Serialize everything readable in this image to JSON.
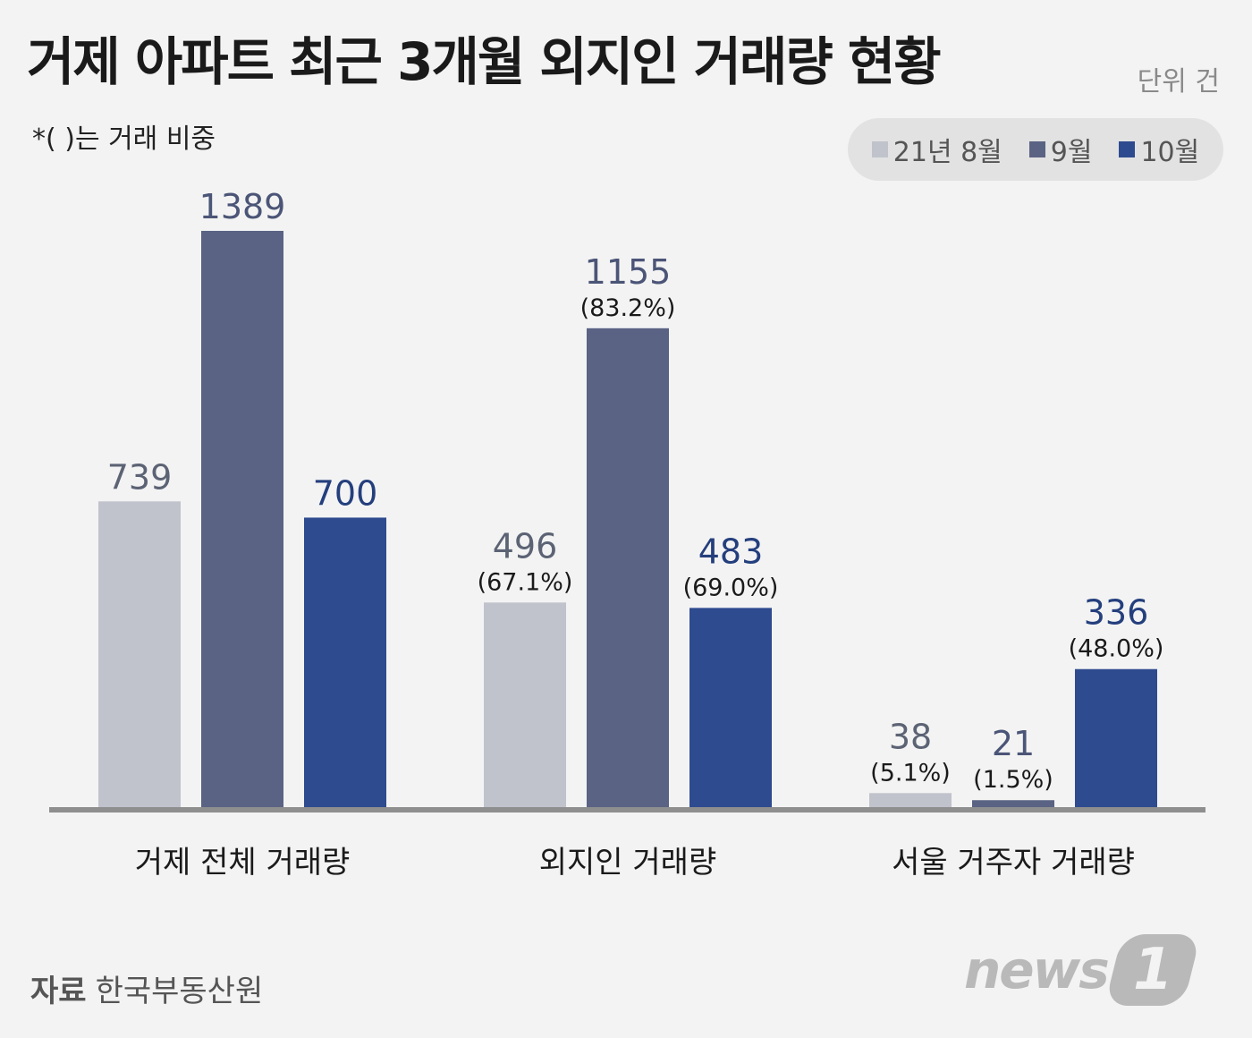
{
  "header": {
    "title": "거제 아파트 최근 3개월 외지인 거래량 현황",
    "unit": "단위 건",
    "note": "*( )는 거래 비중"
  },
  "legend": {
    "items": [
      {
        "label": "21년 8월",
        "color": "#c0c3cc"
      },
      {
        "label": "9월",
        "color": "#5a6383"
      },
      {
        "label": "10월",
        "color": "#2e4b8f"
      }
    ]
  },
  "chart_data": {
    "type": "bar",
    "categories": [
      "거제 전체 거래량",
      "외지인 거래량",
      "서울 거주자 거래량"
    ],
    "series": [
      {
        "name": "21년 8월",
        "values": [
          739,
          496,
          38
        ],
        "shares": [
          "",
          "(67.1%)",
          "(5.1%)"
        ],
        "color": "#c0c3cc",
        "label_color": "#5c6374"
      },
      {
        "name": "9월",
        "values": [
          1389,
          1155,
          21
        ],
        "shares": [
          "",
          "(83.2%)",
          "(1.5%)"
        ],
        "color": "#5a6383",
        "label_color": "#4b5577"
      },
      {
        "name": "10월",
        "values": [
          700,
          483,
          336
        ],
        "shares": [
          "",
          "(69.0%)",
          "(48.0%)"
        ],
        "color": "#2e4b8f",
        "label_color": "#243f7d"
      }
    ],
    "ylim": [
      0,
      1389
    ],
    "grid": false,
    "legend_position": "top-right"
  },
  "footer": {
    "source_label": "자료",
    "source": "한국부동산원",
    "logo_text": "news",
    "logo_badge": "1"
  }
}
